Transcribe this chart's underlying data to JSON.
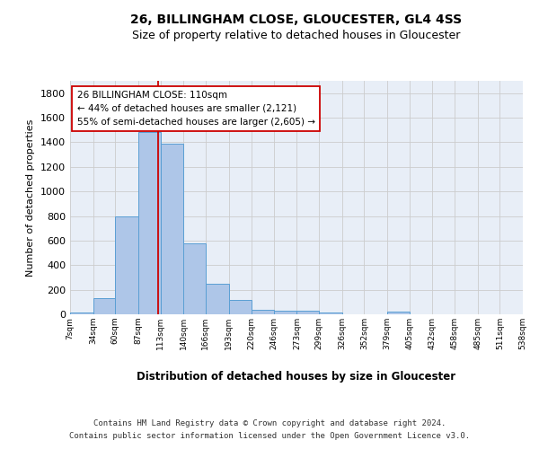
{
  "title1": "26, BILLINGHAM CLOSE, GLOUCESTER, GL4 4SS",
  "title2": "Size of property relative to detached houses in Gloucester",
  "xlabel": "Distribution of detached houses by size in Gloucester",
  "ylabel": "Number of detached properties",
  "bar_edges": [
    7,
    34,
    60,
    87,
    113,
    140,
    166,
    193,
    220,
    246,
    273,
    299,
    326,
    352,
    379,
    405,
    432,
    458,
    485,
    511,
    538
  ],
  "bar_heights": [
    13,
    130,
    795,
    1480,
    1385,
    575,
    250,
    115,
    35,
    30,
    28,
    14,
    0,
    0,
    20,
    0,
    0,
    0,
    0,
    0
  ],
  "bar_color": "#aec6e8",
  "bar_edgecolor": "#5a9fd4",
  "property_line_x": 110,
  "property_line_color": "#cc0000",
  "annotation_line1": "26 BILLINGHAM CLOSE: 110sqm",
  "annotation_line2": "← 44% of detached houses are smaller (2,121)",
  "annotation_line3": "55% of semi-detached houses are larger (2,605) →",
  "annotation_box_edgecolor": "#cc0000",
  "annotation_box_facecolor": "#ffffff",
  "annotation_fontsize": 7.5,
  "ylim": [
    0,
    1900
  ],
  "yticks": [
    0,
    200,
    400,
    600,
    800,
    1000,
    1200,
    1400,
    1600,
    1800
  ],
  "tick_labels": [
    "7sqm",
    "34sqm",
    "60sqm",
    "87sqm",
    "113sqm",
    "140sqm",
    "166sqm",
    "193sqm",
    "220sqm",
    "246sqm",
    "273sqm",
    "299sqm",
    "326sqm",
    "352sqm",
    "379sqm",
    "405sqm",
    "432sqm",
    "458sqm",
    "485sqm",
    "511sqm",
    "538sqm"
  ],
  "grid_color": "#cccccc",
  "background_color": "#e8eef7",
  "footer_line1": "Contains HM Land Registry data © Crown copyright and database right 2024.",
  "footer_line2": "Contains public sector information licensed under the Open Government Licence v3.0.",
  "title1_fontsize": 10,
  "title2_fontsize": 9,
  "ylabel_fontsize": 8,
  "xlabel_fontsize": 8.5
}
